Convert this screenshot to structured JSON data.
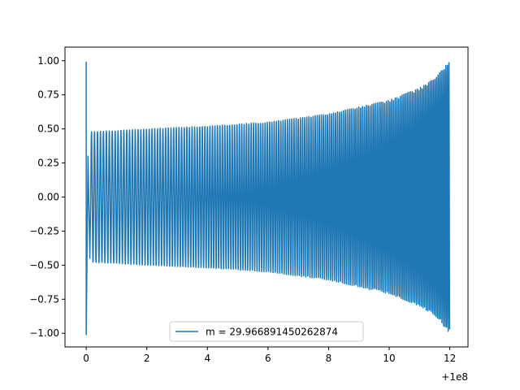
{
  "chart_data": {
    "type": "line",
    "title": "",
    "xlabel": "",
    "ylabel": "",
    "xlim": [
      -0.7,
      12.6
    ],
    "ylim": [
      -1.1,
      1.1
    ],
    "x_offset_label": "+1e8",
    "x_ticks": [
      0,
      2,
      4,
      6,
      8,
      10,
      12
    ],
    "x_tick_labels": [
      "0",
      "2",
      "4",
      "6",
      "8",
      "10",
      "12"
    ],
    "y_ticks": [
      -1.0,
      -0.75,
      -0.5,
      -0.25,
      0.0,
      0.25,
      0.5,
      0.75,
      1.0
    ],
    "y_tick_labels": [
      "−1.00",
      "−0.75",
      "−0.50",
      "−0.25",
      "0.00",
      "0.25",
      "0.50",
      "0.75",
      "1.00"
    ],
    "grid": false,
    "legend_placement": "lower center",
    "series": [
      {
        "name": "m = 29.966891450262874",
        "color": "#1f77b4",
        "x_range": [
          0,
          12
        ],
        "initial_spike": {
          "x": 0.0,
          "y_max": 0.99,
          "y_min": -1.01
        },
        "envelope": [
          {
            "x": 0.3,
            "amplitude": 0.48
          },
          {
            "x": 2,
            "amplitude": 0.5
          },
          {
            "x": 4,
            "amplitude": 0.52
          },
          {
            "x": 6,
            "amplitude": 0.55
          },
          {
            "x": 8,
            "amplitude": 0.61
          },
          {
            "x": 10,
            "amplitude": 0.71
          },
          {
            "x": 11,
            "amplitude": 0.8
          },
          {
            "x": 11.5,
            "amplitude": 0.87
          },
          {
            "x": 12,
            "amplitude": 1.0
          }
        ],
        "oscillation_period": {
          "start": 0.1,
          "end": 0.05
        }
      }
    ]
  }
}
